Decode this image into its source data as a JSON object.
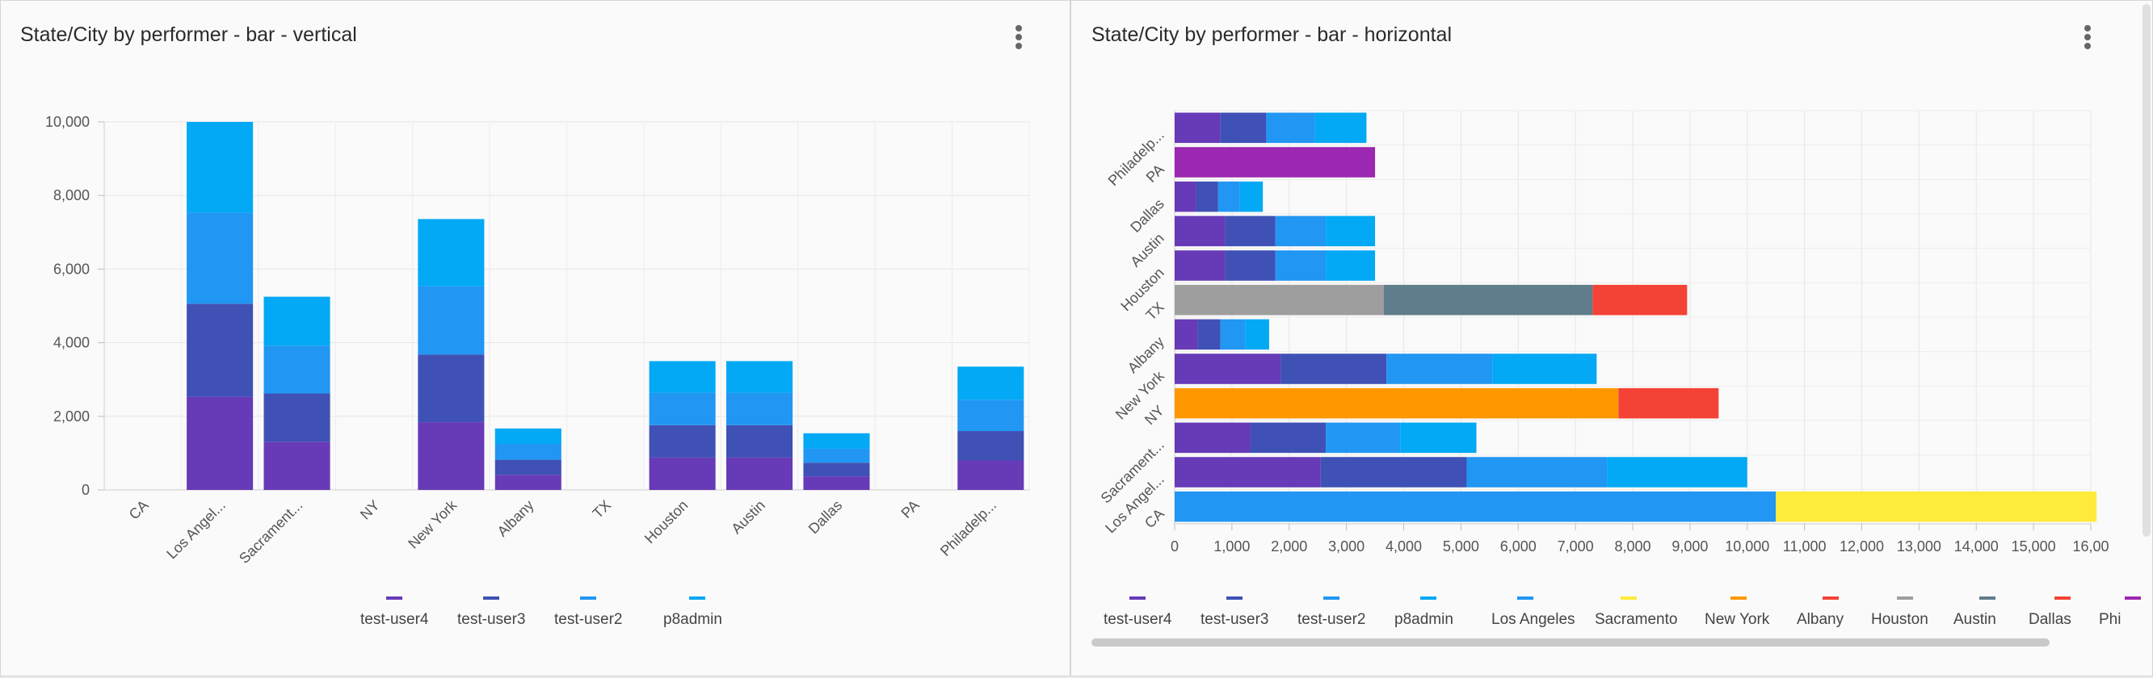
{
  "left_panel": {
    "title": "State/City by performer - bar - vertical",
    "menu_icon": "more-vert-icon"
  },
  "right_panel": {
    "title": "State/City by performer - bar - horizontal",
    "menu_icon": "more-vert-icon"
  },
  "chart_data": [
    {
      "type": "bar",
      "stacked": true,
      "orientation": "vertical",
      "title": "State/City by performer - bar - vertical",
      "categories": [
        "CA",
        "Los Angel...",
        "Sacrament...",
        "NY",
        "New York",
        "Albany",
        "TX",
        "Houston",
        "Austin",
        "Dallas",
        "PA",
        "Philadelp..."
      ],
      "series": [
        {
          "name": "test-user4",
          "color": "#673ab7",
          "values": [
            0,
            2530,
            1310,
            0,
            1840,
            410,
            0,
            880,
            880,
            370,
            0,
            800
          ]
        },
        {
          "name": "test-user3",
          "color": "#3f51b5",
          "values": [
            0,
            2530,
            1310,
            0,
            1840,
            410,
            0,
            880,
            880,
            370,
            0,
            800
          ]
        },
        {
          "name": "test-user2",
          "color": "#2196f3",
          "values": [
            0,
            2470,
            1300,
            0,
            1850,
            430,
            0,
            880,
            880,
            380,
            0,
            850
          ]
        },
        {
          "name": "p8admin",
          "color": "#03a9f4",
          "values": [
            0,
            2470,
            1330,
            0,
            1830,
            420,
            0,
            860,
            860,
            420,
            0,
            900
          ]
        }
      ],
      "ylim": [
        0,
        10000
      ],
      "yticks": [
        "0",
        "2,000",
        "4,000",
        "6,000",
        "8,000",
        "10,000"
      ],
      "grid": true,
      "legend_position": "bottom",
      "legend": [
        "test-user4",
        "test-user3",
        "test-user2",
        "p8admin"
      ]
    },
    {
      "type": "bar",
      "stacked": true,
      "orientation": "horizontal",
      "title": "State/City by performer - bar - horizontal",
      "categories": [
        "CA",
        "Los Angel...",
        "Sacrament...",
        "NY",
        "New York",
        "Albany",
        "TX",
        "Houston",
        "Austin",
        "Dallas",
        "PA",
        "Philadelp..."
      ],
      "category_labels_shown": [
        "CA",
        "Los Angel...",
        "Sacrament...",
        "NY",
        "New York",
        "Albany",
        "TX",
        "Houston",
        "Austin",
        "Dallas",
        "PA",
        "Philadelp..."
      ],
      "series": [
        {
          "name": "test-user4",
          "color": "#673ab7",
          "values": [
            0,
            2550,
            1320,
            0,
            1850,
            400,
            0,
            880,
            880,
            380,
            0,
            800
          ]
        },
        {
          "name": "test-user3",
          "color": "#3f51b5",
          "values": [
            0,
            2550,
            1320,
            0,
            1850,
            400,
            0,
            880,
            880,
            380,
            0,
            800
          ]
        },
        {
          "name": "test-user2",
          "color": "#2196f3",
          "values": [
            0,
            2450,
            1300,
            0,
            1850,
            430,
            0,
            880,
            880,
            380,
            0,
            850
          ]
        },
        {
          "name": "p8admin",
          "color": "#03a9f4",
          "values": [
            0,
            2450,
            1330,
            0,
            1820,
            420,
            0,
            860,
            860,
            400,
            0,
            900
          ]
        },
        {
          "name": "Los Angeles",
          "color": "#2196f3",
          "values": [
            10500,
            0,
            0,
            0,
            0,
            0,
            0,
            0,
            0,
            0,
            0,
            0
          ]
        },
        {
          "name": "Sacramento",
          "color": "#ffeb3b",
          "values": [
            5600,
            0,
            0,
            0,
            0,
            0,
            0,
            0,
            0,
            0,
            0,
            0
          ]
        },
        {
          "name": "New York",
          "color": "#ff9800",
          "values": [
            0,
            0,
            0,
            7750,
            0,
            0,
            0,
            0,
            0,
            0,
            0,
            0
          ]
        },
        {
          "name": "Albany",
          "color": "#f44336",
          "values": [
            0,
            0,
            0,
            1750,
            0,
            0,
            0,
            0,
            0,
            0,
            0,
            0
          ]
        },
        {
          "name": "Houston",
          "color": "#9e9e9e",
          "values": [
            0,
            0,
            0,
            0,
            0,
            0,
            3650,
            0,
            0,
            0,
            0,
            0
          ]
        },
        {
          "name": "Austin",
          "color": "#607d8b",
          "values": [
            0,
            0,
            0,
            0,
            0,
            0,
            3650,
            0,
            0,
            0,
            0,
            0
          ]
        },
        {
          "name": "Dallas",
          "color": "#f44336",
          "values": [
            0,
            0,
            0,
            0,
            0,
            0,
            1650,
            0,
            0,
            0,
            0,
            0
          ]
        },
        {
          "name": "Phi",
          "color": "#9c27b0",
          "values": [
            0,
            0,
            0,
            0,
            0,
            0,
            0,
            0,
            0,
            0,
            3500,
            0
          ]
        }
      ],
      "xlim": [
        0,
        16000
      ],
      "xticks": [
        "0",
        "1,000",
        "2,000",
        "3,000",
        "4,000",
        "5,000",
        "6,000",
        "7,000",
        "8,000",
        "9,000",
        "10,000",
        "11,000",
        "12,000",
        "13,000",
        "14,000",
        "15,000",
        "16,00"
      ],
      "grid": true,
      "legend_position": "bottom",
      "legend": [
        "test-user4",
        "test-user3",
        "test-user2",
        "p8admin",
        "Los Angeles",
        "Sacramento",
        "New York",
        "Albany",
        "Houston",
        "Austin",
        "Dallas",
        "Phi"
      ]
    }
  ]
}
